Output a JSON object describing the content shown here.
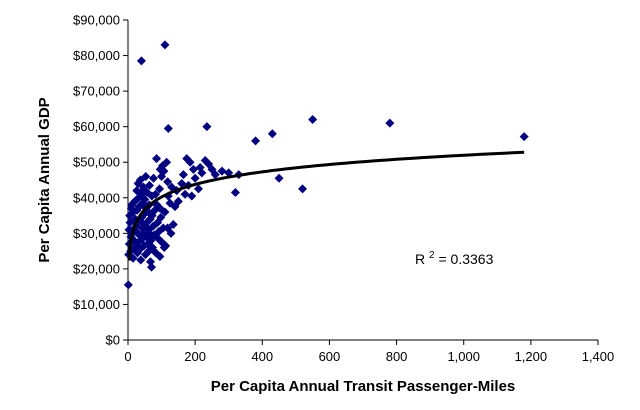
{
  "chart_data": {
    "type": "scatter",
    "xlabel": "Per Capita Annual Transit Passenger-Miles",
    "ylabel": "Per Capita Annual GDP",
    "xlim": [
      0,
      1400
    ],
    "ylim": [
      0,
      90000
    ],
    "x_ticks": [
      "0",
      "200",
      "400",
      "600",
      "800",
      "1,000",
      "1,200",
      "1,400"
    ],
    "y_ticks": [
      "$0",
      "$10,000",
      "$20,000",
      "$30,000",
      "$40,000",
      "$50,000",
      "$60,000",
      "$70,000",
      "$80,000",
      "$90,000"
    ],
    "x_tick_values": [
      0,
      200,
      400,
      600,
      800,
      1000,
      1200,
      1400
    ],
    "y_tick_values": [
      0,
      10000,
      20000,
      30000,
      40000,
      50000,
      60000,
      70000,
      80000,
      90000
    ],
    "grid": false,
    "legend": "none",
    "marker": "diamond",
    "marker_color": "#000080",
    "trendline": {
      "type": "logarithmic",
      "color": "#000000",
      "x_range": [
        3,
        1180
      ]
    },
    "r_squared": {
      "label": "R",
      "superscript": "2",
      "value_text": " = 0.3363"
    },
    "points": [
      [
        1,
        15500
      ],
      [
        2,
        24000
      ],
      [
        3,
        31000
      ],
      [
        4,
        27000
      ],
      [
        5,
        35000
      ],
      [
        6,
        33000
      ],
      [
        8,
        25000
      ],
      [
        9,
        29000
      ],
      [
        10,
        37000
      ],
      [
        11,
        38000
      ],
      [
        12,
        30000
      ],
      [
        14,
        31000
      ],
      [
        15,
        23000
      ],
      [
        16,
        36000
      ],
      [
        17,
        33500
      ],
      [
        18,
        28000
      ],
      [
        20,
        39000
      ],
      [
        21,
        26000
      ],
      [
        22,
        34000
      ],
      [
        24,
        30500
      ],
      [
        25,
        32000
      ],
      [
        26,
        42000
      ],
      [
        27,
        36500
      ],
      [
        28,
        24500
      ],
      [
        30,
        44000
      ],
      [
        31,
        27500
      ],
      [
        32,
        40000
      ],
      [
        33,
        37500
      ],
      [
        34,
        29500
      ],
      [
        35,
        25500
      ],
      [
        36,
        33500
      ],
      [
        37,
        45000
      ],
      [
        38,
        22500
      ],
      [
        40,
        41000
      ],
      [
        41,
        34500
      ],
      [
        42,
        31500
      ],
      [
        43,
        28500
      ],
      [
        44,
        38500
      ],
      [
        45,
        30000
      ],
      [
        46,
        43000
      ],
      [
        48,
        26500
      ],
      [
        49,
        35500
      ],
      [
        50,
        39500
      ],
      [
        51,
        32500
      ],
      [
        52,
        24000
      ],
      [
        53,
        46000
      ],
      [
        54,
        37000
      ],
      [
        55,
        29000
      ],
      [
        56,
        33000
      ],
      [
        57,
        41500
      ],
      [
        58,
        27000
      ],
      [
        60,
        36000
      ],
      [
        61,
        31000
      ],
      [
        62,
        25000
      ],
      [
        63,
        38000
      ],
      [
        64,
        43500
      ],
      [
        65,
        30000
      ],
      [
        66,
        34000
      ],
      [
        67,
        22000
      ],
      [
        68,
        28000
      ],
      [
        70,
        20500
      ],
      [
        71,
        40500
      ],
      [
        72,
        35000
      ],
      [
        73,
        26000
      ],
      [
        75,
        32000
      ],
      [
        76,
        45500
      ],
      [
        78,
        29500
      ],
      [
        80,
        36500
      ],
      [
        82,
        41000
      ],
      [
        83,
        24500
      ],
      [
        85,
        51000
      ],
      [
        86,
        38000
      ],
      [
        88,
        33000
      ],
      [
        90,
        28500
      ],
      [
        92,
        30500
      ],
      [
        94,
        42500
      ],
      [
        95,
        23500
      ],
      [
        96,
        37000
      ],
      [
        98,
        34500
      ],
      [
        100,
        46000
      ],
      [
        101,
        27500
      ],
      [
        103,
        49000
      ],
      [
        105,
        31500
      ],
      [
        107,
        47500
      ],
      [
        110,
        36000
      ],
      [
        112,
        26500
      ],
      [
        115,
        50000
      ],
      [
        118,
        44500
      ],
      [
        120,
        40500
      ],
      [
        125,
        38500
      ],
      [
        128,
        30000
      ],
      [
        130,
        43000
      ],
      [
        135,
        32500
      ],
      [
        140,
        37500
      ],
      [
        145,
        42000
      ],
      [
        150,
        39000
      ],
      [
        160,
        44000
      ],
      [
        165,
        46500
      ],
      [
        170,
        41000
      ],
      [
        175,
        51000
      ],
      [
        180,
        43500
      ],
      [
        185,
        50000
      ],
      [
        190,
        40500
      ],
      [
        195,
        48000
      ],
      [
        200,
        45500
      ],
      [
        210,
        42500
      ],
      [
        215,
        48500
      ],
      [
        220,
        47000
      ],
      [
        230,
        50500
      ],
      [
        240,
        49500
      ],
      [
        250,
        48000
      ],
      [
        260,
        46500
      ],
      [
        280,
        47500
      ],
      [
        300,
        47000
      ],
      [
        320,
        41500
      ],
      [
        330,
        46500
      ],
      [
        380,
        56000
      ],
      [
        430,
        58000
      ],
      [
        450,
        45500
      ],
      [
        520,
        42500
      ],
      [
        550,
        62000
      ],
      [
        780,
        61000
      ],
      [
        1180,
        57200
      ],
      [
        40,
        78500
      ],
      [
        110,
        83000
      ],
      [
        120,
        59500
      ],
      [
        235,
        60000
      ],
      [
        108,
        26000
      ],
      [
        118,
        31500
      ],
      [
        96,
        48000
      ],
      [
        44,
        42000
      ]
    ]
  }
}
